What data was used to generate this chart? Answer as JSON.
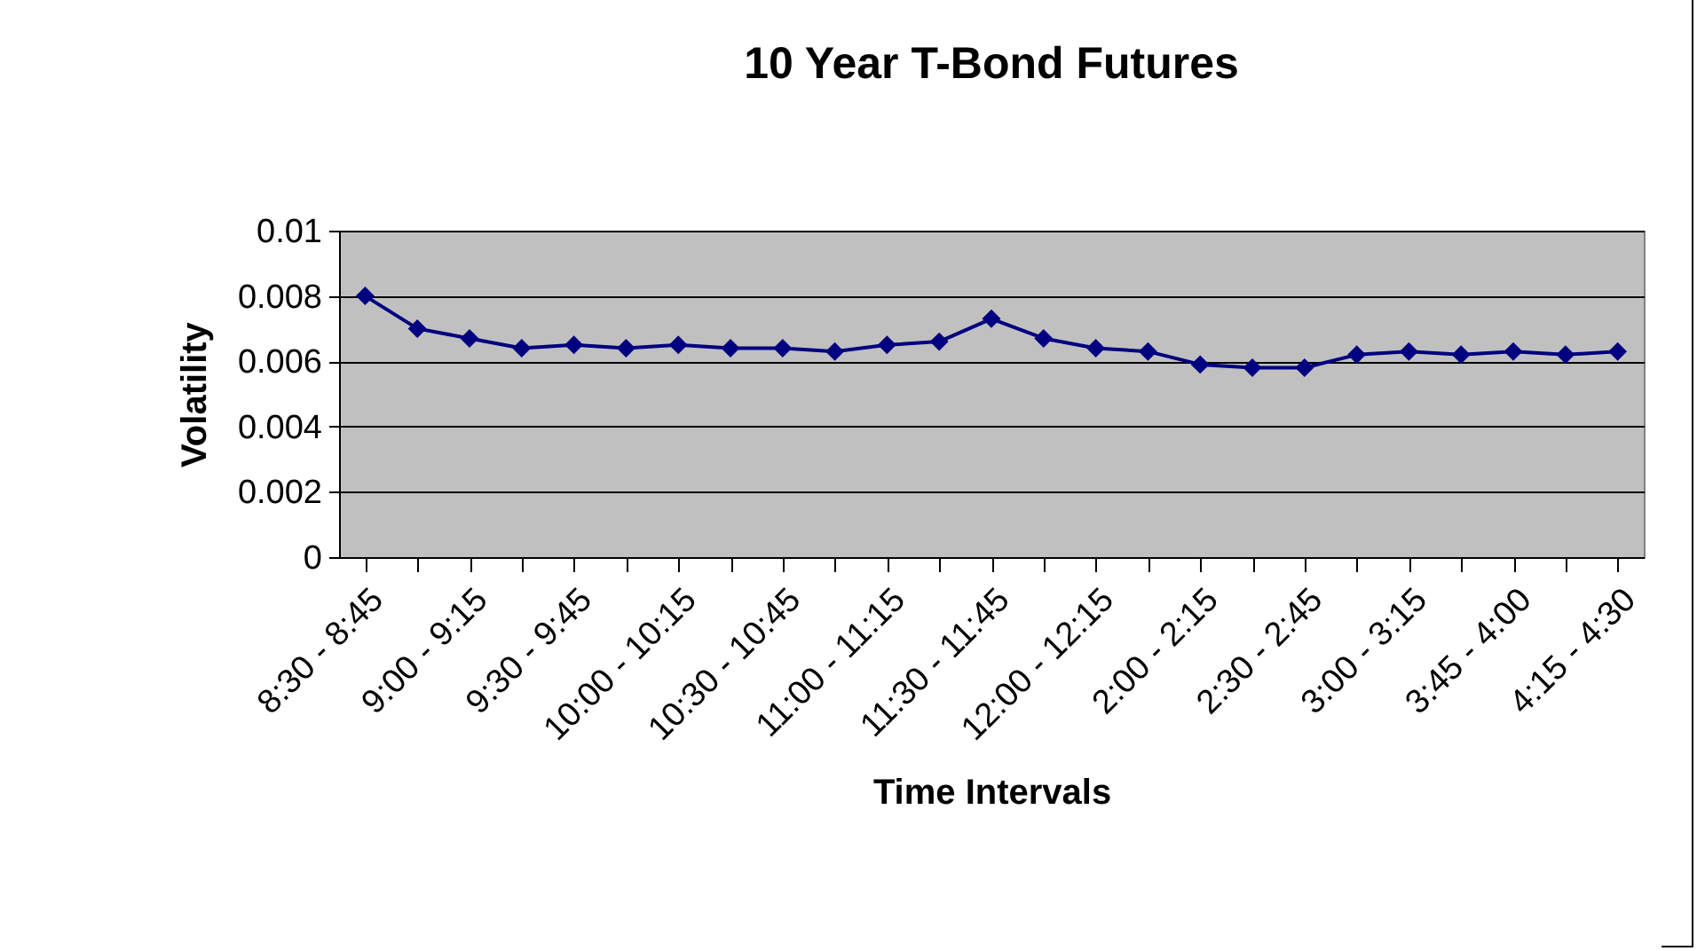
{
  "chart_data": {
    "type": "line",
    "title": "10 Year T-Bond Futures",
    "xlabel": "Time Intervals",
    "ylabel": "Volatility",
    "categories": [
      "8:30 - 8:45",
      null,
      "9:00 - 9:15",
      null,
      "9:30 - 9:45",
      null,
      "10:00 - 10:15",
      null,
      "10:30 - 10:45",
      null,
      "11:00 - 11:15",
      null,
      "11:30 - 11:45",
      null,
      "12:00 - 12:15",
      null,
      "2:00 - 2:15",
      null,
      "2:30 - 2:45",
      null,
      "3:00 - 3:15",
      null,
      "3:45 - 4:00",
      null,
      "4:15 - 4:30"
    ],
    "series": [
      {
        "color": "#000080",
        "values": [
          0.008,
          0.007,
          0.0067,
          0.0064,
          0.0065,
          0.0064,
          0.0065,
          0.0064,
          0.0064,
          0.0063,
          0.0065,
          0.0066,
          0.0073,
          0.0067,
          0.0064,
          0.0063,
          0.0059,
          0.0058,
          0.0058,
          0.0062,
          0.0063,
          0.0062,
          0.0063,
          0.0062,
          0.0063
        ]
      }
    ],
    "ylim": [
      0,
      0.01
    ],
    "yticks": [
      0,
      0.002,
      0.004,
      0.006,
      0.008,
      0.01
    ],
    "grid": "y",
    "marker": "diamond",
    "line_style": "solid"
  }
}
